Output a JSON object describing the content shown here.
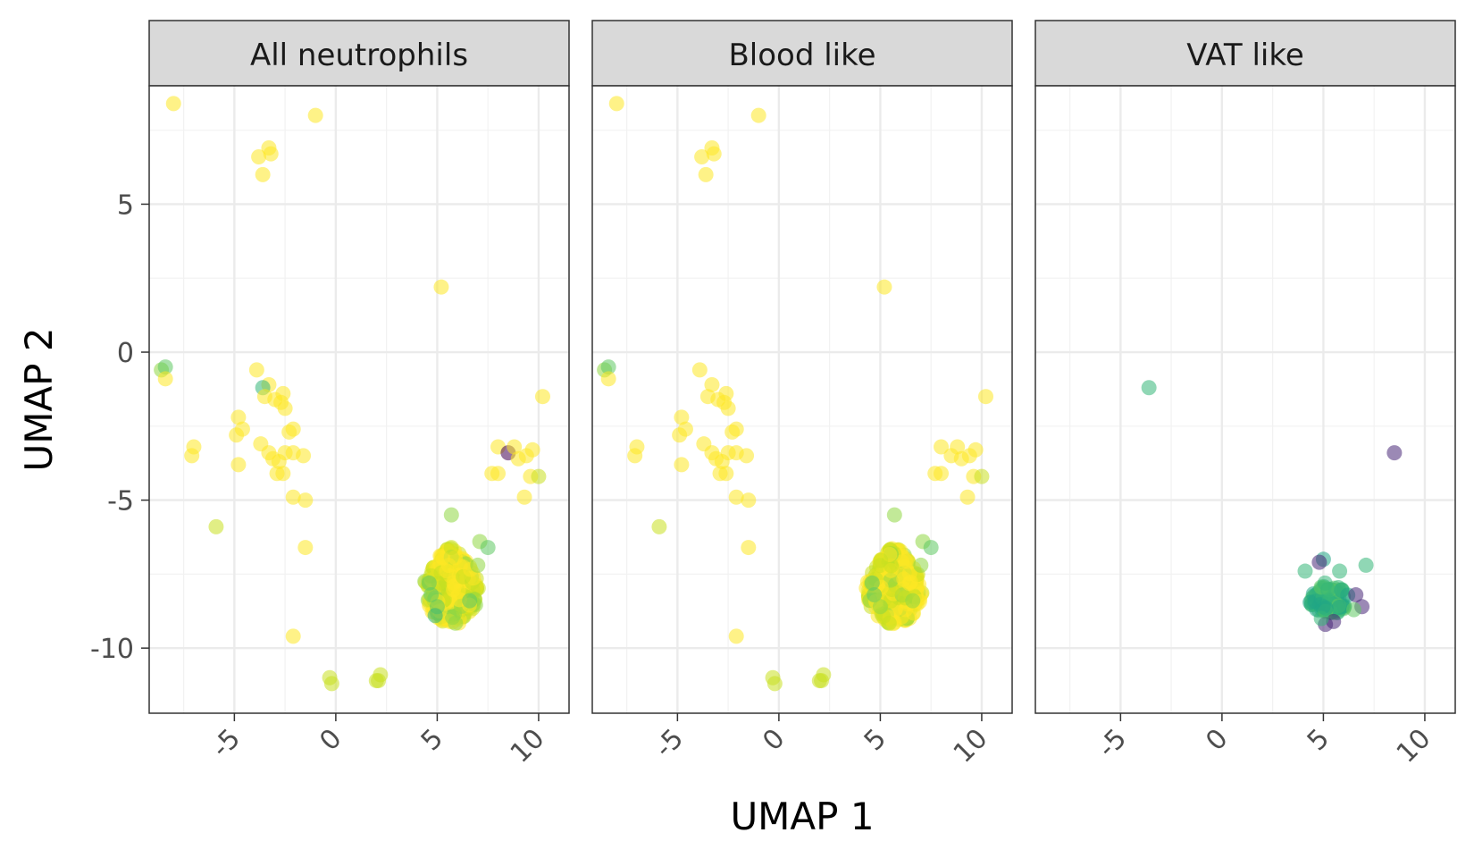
{
  "chart_data": {
    "type": "scatter",
    "xlabel": "UMAP 1",
    "ylabel": "UMAP 2",
    "xlim": [
      -9.2,
      11.5
    ],
    "ylim": [
      -12.2,
      9.0
    ],
    "x_ticks": [
      -5,
      0,
      5,
      10
    ],
    "y_ticks": [
      5,
      0,
      -5,
      -10
    ],
    "grid": true,
    "legend": "none",
    "colors": {
      "yellow": "#fde725",
      "yellowgreen": "#c8e020",
      "lime": "#8fd744",
      "green": "#5ec962",
      "teal": "#35b779",
      "bluegreen": "#21a585",
      "purple": "#440154",
      "darkpurple": "#482878"
    },
    "panels": [
      {
        "title": "All neutrophils",
        "points": [
          {
            "x": -8.0,
            "y": 8.4,
            "c": "yellow"
          },
          {
            "x": -1.0,
            "y": 8.0,
            "c": "yellow"
          },
          {
            "x": -3.8,
            "y": 6.6,
            "c": "yellow"
          },
          {
            "x": -3.3,
            "y": 6.9,
            "c": "yellow"
          },
          {
            "x": -3.2,
            "y": 6.7,
            "c": "yellow"
          },
          {
            "x": -3.6,
            "y": 6.0,
            "c": "yellow"
          },
          {
            "x": 5.2,
            "y": 2.2,
            "c": "yellow"
          },
          {
            "x": -8.6,
            "y": -0.6,
            "c": "lime"
          },
          {
            "x": -8.4,
            "y": -0.5,
            "c": "green"
          },
          {
            "x": -8.4,
            "y": -0.9,
            "c": "yellow"
          },
          {
            "x": -3.9,
            "y": -0.6,
            "c": "yellow"
          },
          {
            "x": -3.3,
            "y": -1.1,
            "c": "yellow"
          },
          {
            "x": -3.6,
            "y": -1.2,
            "c": "teal"
          },
          {
            "x": -3.5,
            "y": -1.5,
            "c": "yellow"
          },
          {
            "x": -3.0,
            "y": -1.6,
            "c": "yellow"
          },
          {
            "x": -2.6,
            "y": -1.4,
            "c": "yellow"
          },
          {
            "x": -2.7,
            "y": -1.7,
            "c": "yellow"
          },
          {
            "x": -2.5,
            "y": -1.9,
            "c": "yellow"
          },
          {
            "x": 10.2,
            "y": -1.5,
            "c": "yellow"
          },
          {
            "x": -4.8,
            "y": -2.2,
            "c": "yellow"
          },
          {
            "x": -4.6,
            "y": -2.6,
            "c": "yellow"
          },
          {
            "x": -4.9,
            "y": -2.8,
            "c": "yellow"
          },
          {
            "x": -2.3,
            "y": -2.7,
            "c": "yellow"
          },
          {
            "x": -2.1,
            "y": -2.6,
            "c": "yellow"
          },
          {
            "x": -7.0,
            "y": -3.2,
            "c": "yellow"
          },
          {
            "x": -7.1,
            "y": -3.5,
            "c": "yellow"
          },
          {
            "x": -3.7,
            "y": -3.1,
            "c": "yellow"
          },
          {
            "x": -3.3,
            "y": -3.4,
            "c": "yellow"
          },
          {
            "x": -3.1,
            "y": -3.6,
            "c": "yellow"
          },
          {
            "x": -2.8,
            "y": -3.7,
            "c": "yellow"
          },
          {
            "x": -2.5,
            "y": -3.4,
            "c": "yellow"
          },
          {
            "x": -2.1,
            "y": -3.4,
            "c": "yellow"
          },
          {
            "x": -1.6,
            "y": -3.5,
            "c": "yellow"
          },
          {
            "x": -4.8,
            "y": -3.8,
            "c": "yellow"
          },
          {
            "x": -2.9,
            "y": -4.1,
            "c": "yellow"
          },
          {
            "x": -2.6,
            "y": -4.1,
            "c": "yellow"
          },
          {
            "x": -2.1,
            "y": -4.9,
            "c": "yellow"
          },
          {
            "x": -1.5,
            "y": -5.0,
            "c": "yellow"
          },
          {
            "x": 8.0,
            "y": -3.2,
            "c": "yellow"
          },
          {
            "x": 8.5,
            "y": -3.4,
            "c": "purple"
          },
          {
            "x": 8.8,
            "y": -3.2,
            "c": "yellow"
          },
          {
            "x": 9.0,
            "y": -3.6,
            "c": "yellow"
          },
          {
            "x": 9.7,
            "y": -3.3,
            "c": "yellow"
          },
          {
            "x": 9.4,
            "y": -3.5,
            "c": "yellow"
          },
          {
            "x": 7.7,
            "y": -4.1,
            "c": "yellow"
          },
          {
            "x": 8.0,
            "y": -4.1,
            "c": "yellow"
          },
          {
            "x": 9.6,
            "y": -4.2,
            "c": "yellow"
          },
          {
            "x": 10.0,
            "y": -4.2,
            "c": "yellowgreen"
          },
          {
            "x": 9.3,
            "y": -4.9,
            "c": "yellow"
          },
          {
            "x": -5.9,
            "y": -5.9,
            "c": "yellowgreen"
          },
          {
            "x": 5.7,
            "y": -5.5,
            "c": "lime"
          },
          {
            "x": 7.1,
            "y": -6.4,
            "c": "lime"
          },
          {
            "x": 7.5,
            "y": -6.6,
            "c": "green"
          },
          {
            "x": -1.5,
            "y": -6.6,
            "c": "yellow"
          },
          {
            "x": -2.1,
            "y": -9.6,
            "c": "yellow"
          },
          {
            "x": -0.3,
            "y": -11.0,
            "c": "yellowgreen"
          },
          {
            "x": -0.2,
            "y": -11.2,
            "c": "yellowgreen"
          },
          {
            "x": 2.0,
            "y": -11.1,
            "c": "yellowgreen"
          },
          {
            "x": 2.2,
            "y": -10.9,
            "c": "yellowgreen"
          },
          {
            "x": 2.1,
            "y": -11.1,
            "c": "yellowgreen"
          },
          {
            "x": 4.6,
            "y": -7.8,
            "c": "green"
          },
          {
            "x": 4.7,
            "y": -8.2,
            "c": "green"
          },
          {
            "x": 5.0,
            "y": -8.6,
            "c": "green"
          },
          {
            "x": 4.9,
            "y": -8.9,
            "c": "teal"
          },
          {
            "x": 6.6,
            "y": -8.4,
            "c": "green"
          },
          {
            "x": 7.0,
            "y": -7.2,
            "c": "lime"
          }
        ],
        "cluster": {
          "cx": 5.7,
          "cy": -7.9,
          "rx": 1.4,
          "ry": 1.3,
          "n": 300,
          "colors": [
            "yellow",
            "yellow",
            "yellow",
            "yellowgreen",
            "yellowgreen",
            "lime"
          ]
        }
      },
      {
        "title": "Blood like",
        "points": [
          {
            "x": -8.0,
            "y": 8.4,
            "c": "yellow"
          },
          {
            "x": -1.0,
            "y": 8.0,
            "c": "yellow"
          },
          {
            "x": -3.8,
            "y": 6.6,
            "c": "yellow"
          },
          {
            "x": -3.3,
            "y": 6.9,
            "c": "yellow"
          },
          {
            "x": -3.2,
            "y": 6.7,
            "c": "yellow"
          },
          {
            "x": -3.6,
            "y": 6.0,
            "c": "yellow"
          },
          {
            "x": 5.2,
            "y": 2.2,
            "c": "yellow"
          },
          {
            "x": -8.6,
            "y": -0.6,
            "c": "lime"
          },
          {
            "x": -8.4,
            "y": -0.5,
            "c": "green"
          },
          {
            "x": -8.4,
            "y": -0.9,
            "c": "yellow"
          },
          {
            "x": -3.9,
            "y": -0.6,
            "c": "yellow"
          },
          {
            "x": -3.3,
            "y": -1.1,
            "c": "yellow"
          },
          {
            "x": -3.5,
            "y": -1.5,
            "c": "yellow"
          },
          {
            "x": -3.0,
            "y": -1.6,
            "c": "yellow"
          },
          {
            "x": -2.6,
            "y": -1.4,
            "c": "yellow"
          },
          {
            "x": -2.7,
            "y": -1.7,
            "c": "yellow"
          },
          {
            "x": -2.5,
            "y": -1.9,
            "c": "yellow"
          },
          {
            "x": 10.2,
            "y": -1.5,
            "c": "yellow"
          },
          {
            "x": -4.8,
            "y": -2.2,
            "c": "yellow"
          },
          {
            "x": -4.6,
            "y": -2.6,
            "c": "yellow"
          },
          {
            "x": -4.9,
            "y": -2.8,
            "c": "yellow"
          },
          {
            "x": -2.3,
            "y": -2.7,
            "c": "yellow"
          },
          {
            "x": -2.1,
            "y": -2.6,
            "c": "yellow"
          },
          {
            "x": -7.0,
            "y": -3.2,
            "c": "yellow"
          },
          {
            "x": -7.1,
            "y": -3.5,
            "c": "yellow"
          },
          {
            "x": -3.7,
            "y": -3.1,
            "c": "yellow"
          },
          {
            "x": -3.3,
            "y": -3.4,
            "c": "yellow"
          },
          {
            "x": -3.1,
            "y": -3.6,
            "c": "yellow"
          },
          {
            "x": -2.8,
            "y": -3.7,
            "c": "yellow"
          },
          {
            "x": -2.5,
            "y": -3.4,
            "c": "yellow"
          },
          {
            "x": -2.1,
            "y": -3.4,
            "c": "yellow"
          },
          {
            "x": -1.6,
            "y": -3.5,
            "c": "yellow"
          },
          {
            "x": -4.8,
            "y": -3.8,
            "c": "yellow"
          },
          {
            "x": -2.9,
            "y": -4.1,
            "c": "yellow"
          },
          {
            "x": -2.6,
            "y": -4.1,
            "c": "yellow"
          },
          {
            "x": -2.1,
            "y": -4.9,
            "c": "yellow"
          },
          {
            "x": -1.5,
            "y": -5.0,
            "c": "yellow"
          },
          {
            "x": 8.0,
            "y": -3.2,
            "c": "yellow"
          },
          {
            "x": 8.8,
            "y": -3.2,
            "c": "yellow"
          },
          {
            "x": 8.5,
            "y": -3.5,
            "c": "yellow"
          },
          {
            "x": 9.0,
            "y": -3.6,
            "c": "yellow"
          },
          {
            "x": 9.7,
            "y": -3.3,
            "c": "yellow"
          },
          {
            "x": 9.4,
            "y": -3.5,
            "c": "yellow"
          },
          {
            "x": 7.7,
            "y": -4.1,
            "c": "yellow"
          },
          {
            "x": 8.0,
            "y": -4.1,
            "c": "yellow"
          },
          {
            "x": 9.6,
            "y": -4.2,
            "c": "yellow"
          },
          {
            "x": 10.0,
            "y": -4.2,
            "c": "yellowgreen"
          },
          {
            "x": 9.3,
            "y": -4.9,
            "c": "yellow"
          },
          {
            "x": -5.9,
            "y": -5.9,
            "c": "yellowgreen"
          },
          {
            "x": 5.7,
            "y": -5.5,
            "c": "lime"
          },
          {
            "x": 7.1,
            "y": -6.4,
            "c": "lime"
          },
          {
            "x": 7.5,
            "y": -6.6,
            "c": "green"
          },
          {
            "x": -1.5,
            "y": -6.6,
            "c": "yellow"
          },
          {
            "x": -2.1,
            "y": -9.6,
            "c": "yellow"
          },
          {
            "x": -0.3,
            "y": -11.0,
            "c": "yellowgreen"
          },
          {
            "x": -0.2,
            "y": -11.2,
            "c": "yellowgreen"
          },
          {
            "x": 2.0,
            "y": -11.1,
            "c": "yellowgreen"
          },
          {
            "x": 2.2,
            "y": -10.9,
            "c": "yellowgreen"
          },
          {
            "x": 2.1,
            "y": -11.1,
            "c": "yellowgreen"
          },
          {
            "x": 4.6,
            "y": -7.8,
            "c": "green"
          },
          {
            "x": 4.7,
            "y": -8.2,
            "c": "green"
          },
          {
            "x": 5.0,
            "y": -8.6,
            "c": "lime"
          },
          {
            "x": 6.6,
            "y": -8.4,
            "c": "lime"
          },
          {
            "x": 7.0,
            "y": -7.2,
            "c": "lime"
          }
        ],
        "cluster": {
          "cx": 5.7,
          "cy": -7.9,
          "rx": 1.4,
          "ry": 1.3,
          "n": 300,
          "colors": [
            "yellow",
            "yellow",
            "yellow",
            "yellowgreen",
            "yellowgreen",
            "lime"
          ]
        }
      },
      {
        "title": "VAT like",
        "points": [
          {
            "x": -3.6,
            "y": -1.2,
            "c": "teal"
          },
          {
            "x": 8.5,
            "y": -3.4,
            "c": "darkpurple"
          },
          {
            "x": 5.0,
            "y": -7.0,
            "c": "bluegreen"
          },
          {
            "x": 4.8,
            "y": -7.1,
            "c": "darkpurple"
          },
          {
            "x": 5.8,
            "y": -7.4,
            "c": "teal"
          },
          {
            "x": 7.1,
            "y": -7.2,
            "c": "teal"
          },
          {
            "x": 4.1,
            "y": -7.4,
            "c": "teal"
          },
          {
            "x": 6.6,
            "y": -8.2,
            "c": "darkpurple"
          },
          {
            "x": 6.9,
            "y": -8.6,
            "c": "darkpurple"
          },
          {
            "x": 5.1,
            "y": -9.2,
            "c": "darkpurple"
          },
          {
            "x": 5.5,
            "y": -9.1,
            "c": "darkpurple"
          },
          {
            "x": 4.9,
            "y": -9.0,
            "c": "teal"
          },
          {
            "x": 6.5,
            "y": -8.7,
            "c": "green"
          }
        ],
        "cluster": {
          "cx": 5.3,
          "cy": -8.3,
          "rx": 1.0,
          "ry": 0.55,
          "n": 90,
          "colors": [
            "teal",
            "teal",
            "bluegreen",
            "bluegreen",
            "green"
          ]
        }
      }
    ]
  }
}
